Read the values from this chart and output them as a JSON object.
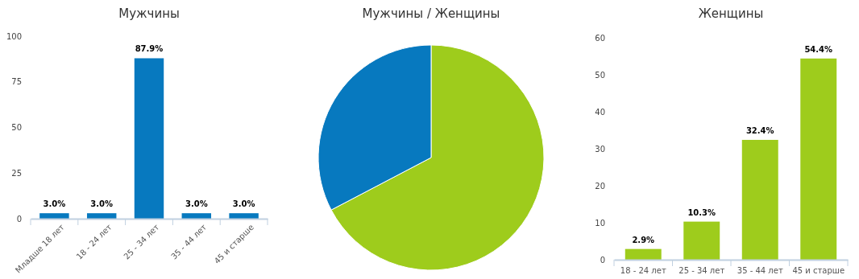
{
  "chart_data": [
    {
      "type": "bar",
      "title": "Мужчины",
      "categories": [
        "Младше 18 лет",
        "18 - 24 лет",
        "25 - 34 лет",
        "35 - 44 лет",
        "45 и старше"
      ],
      "values": [
        3.0,
        3.0,
        87.9,
        3.0,
        3.0
      ],
      "value_labels": [
        "3.0%",
        "3.0%",
        "87.9%",
        "3.0%",
        "3.0%"
      ],
      "color": "#0779bf",
      "ylim": [
        0,
        100
      ],
      "yticks": [
        0,
        25,
        50,
        75,
        100
      ],
      "grid": false
    },
    {
      "type": "pie",
      "title": "Мужчины / Женщины",
      "categories": [
        null,
        null
      ],
      "values": [
        67.3,
        32.7
      ],
      "colors": [
        "#9ecc1c",
        "#0779bf"
      ]
    },
    {
      "type": "bar",
      "title": "Женщины",
      "categories": [
        "18 - 24 лет",
        "25 - 34 лет",
        "35 - 44 лет",
        "45 и старше"
      ],
      "values": [
        2.9,
        10.3,
        32.4,
        54.4
      ],
      "value_labels": [
        "2.9%",
        "10.3%",
        "32.4%",
        "54.4%"
      ],
      "color": "#9ecc1c",
      "ylim": [
        0,
        60
      ],
      "yticks": [
        0,
        10,
        20,
        30,
        40,
        50,
        60
      ],
      "grid": false
    }
  ]
}
